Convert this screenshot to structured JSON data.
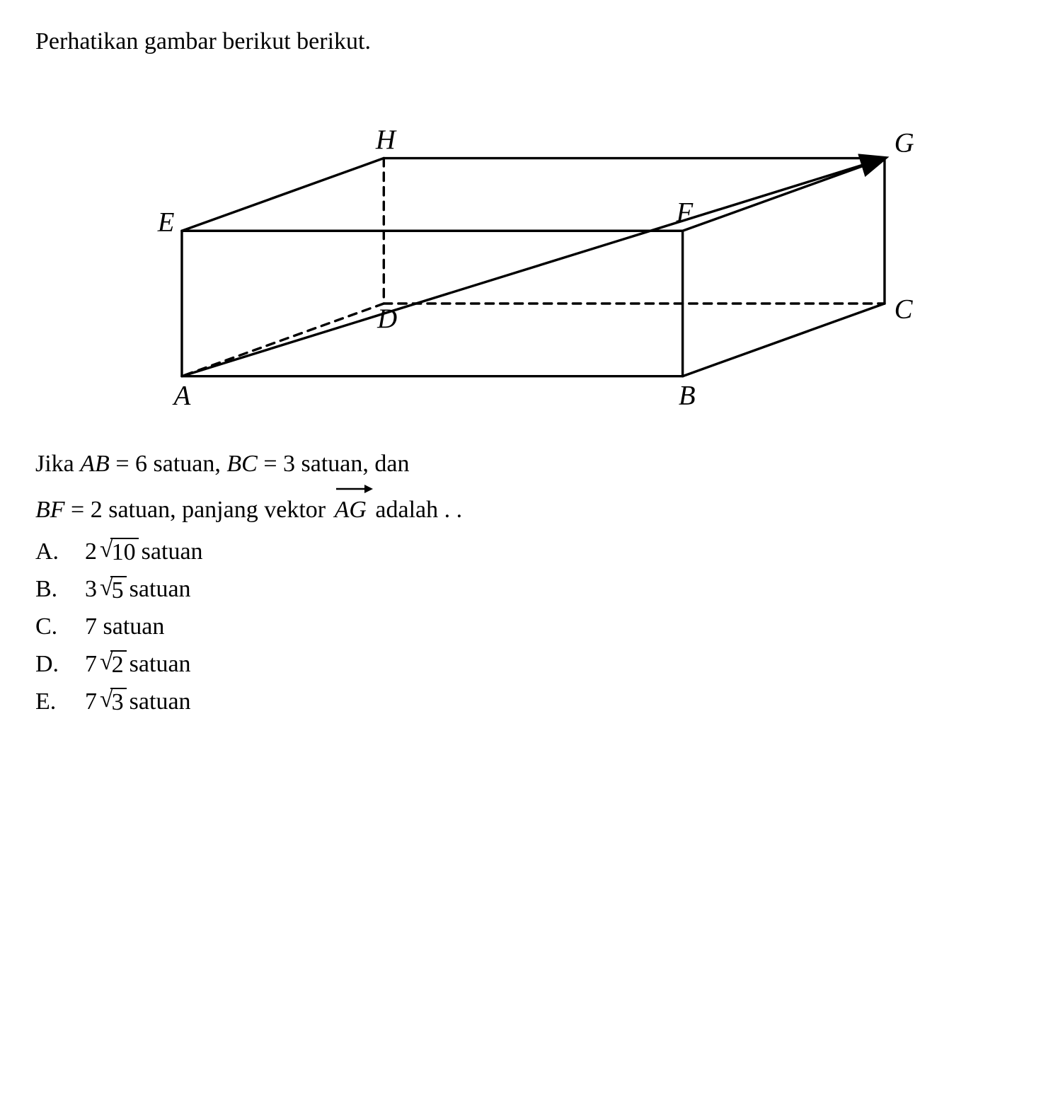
{
  "intro": "Perhatikan gambar berikut berikut.",
  "figure": {
    "labels": {
      "A": "A",
      "B": "B",
      "C": "C",
      "D": "D",
      "E": "E",
      "F": "F",
      "G": "G",
      "H": "H"
    },
    "label_font_size": 34,
    "stroke_color": "#000000",
    "stroke_width": 3,
    "dash_pattern": "10,8",
    "arrow_head_size": 18,
    "coords": {
      "A": [
        120,
        380
      ],
      "B": [
        740,
        380
      ],
      "E": [
        120,
        200
      ],
      "F": [
        740,
        200
      ],
      "D": [
        370,
        290
      ],
      "C": [
        990,
        290
      ],
      "H": [
        370,
        110
      ],
      "G": [
        990,
        110
      ]
    }
  },
  "given": {
    "prefix": "Jika ",
    "AB_var": "AB",
    "eq": " = ",
    "AB_val": "6 satuan, ",
    "BC_var": "BC",
    "BC_val": "3 satuan, dan",
    "BF_var": "BF",
    "BF_val": "2 satuan, panjang vektor ",
    "vec": "AG",
    "tail": " adalah . ."
  },
  "options": [
    {
      "letter": "A.",
      "coef": "2",
      "rad": "10",
      "unit": " satuan"
    },
    {
      "letter": "B.",
      "coef": "3",
      "rad": "5",
      "unit": " satuan"
    },
    {
      "letter": "C.",
      "coef": "",
      "rad": "",
      "plain": "7 satuan"
    },
    {
      "letter": "D.",
      "coef": "7",
      "rad": "2",
      "unit": " satuan"
    },
    {
      "letter": "E.",
      "coef": "7",
      "rad": "3",
      "unit": " satuan"
    }
  ],
  "colors": {
    "text": "#000000",
    "bg": "#ffffff"
  }
}
